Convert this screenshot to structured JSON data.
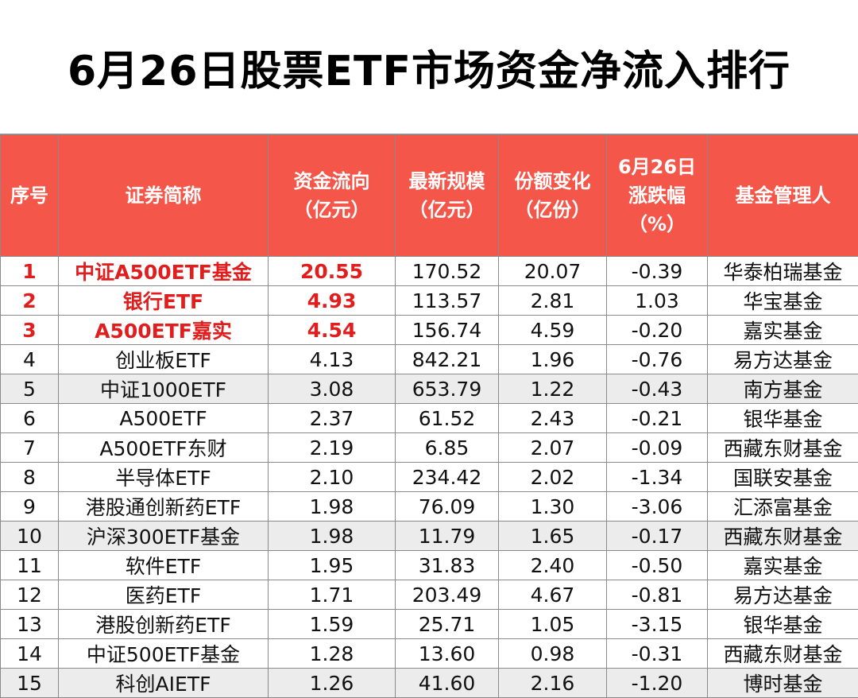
{
  "title": "6月26日股票ETF市场资金净流入排行",
  "colors": {
    "header_bg": "#f4574a",
    "highlight_text": "#e21d1d",
    "shaded_row": "#ececec"
  },
  "headers": {
    "rank": [
      "序号"
    ],
    "name": [
      "证券简称"
    ],
    "flow": [
      "资金流向",
      "（亿元）"
    ],
    "scale": [
      "最新规模",
      "（亿元）"
    ],
    "share": [
      "份额变化",
      "（亿份）"
    ],
    "change": [
      "6月26日",
      "涨跌幅",
      "（%）"
    ],
    "manager": [
      "基金管理人"
    ]
  },
  "rows": [
    {
      "rank": "1",
      "name": "中证A500ETF基金",
      "flow": "20.55",
      "scale": "170.52",
      "share": "20.07",
      "change": "-0.39",
      "manager": "华泰柏瑞基金"
    },
    {
      "rank": "2",
      "name": "银行ETF",
      "flow": "4.93",
      "scale": "113.57",
      "share": "2.81",
      "change": "1.03",
      "manager": "华宝基金"
    },
    {
      "rank": "3",
      "name": "A500ETF嘉实",
      "flow": "4.54",
      "scale": "156.74",
      "share": "4.59",
      "change": "-0.20",
      "manager": "嘉实基金"
    },
    {
      "rank": "4",
      "name": "创业板ETF",
      "flow": "4.13",
      "scale": "842.21",
      "share": "1.96",
      "change": "-0.76",
      "manager": "易方达基金"
    },
    {
      "rank": "5",
      "name": "中证1000ETF",
      "flow": "3.08",
      "scale": "653.79",
      "share": "1.22",
      "change": "-0.43",
      "manager": "南方基金"
    },
    {
      "rank": "6",
      "name": "A500ETF",
      "flow": "2.37",
      "scale": "61.52",
      "share": "2.43",
      "change": "-0.21",
      "manager": "银华基金"
    },
    {
      "rank": "7",
      "name": "A500ETF东财",
      "flow": "2.19",
      "scale": "6.85",
      "share": "2.07",
      "change": "-0.09",
      "manager": "西藏东财基金"
    },
    {
      "rank": "8",
      "name": "半导体ETF",
      "flow": "2.10",
      "scale": "234.42",
      "share": "2.02",
      "change": "-1.34",
      "manager": "国联安基金"
    },
    {
      "rank": "9",
      "name": "港股通创新药ETF",
      "flow": "1.98",
      "scale": "76.09",
      "share": "1.30",
      "change": "-3.06",
      "manager": "汇添富基金"
    },
    {
      "rank": "10",
      "name": "沪深300ETF基金",
      "flow": "1.98",
      "scale": "11.79",
      "share": "1.65",
      "change": "-0.17",
      "manager": "西藏东财基金"
    },
    {
      "rank": "11",
      "name": "软件ETF",
      "flow": "1.95",
      "scale": "31.83",
      "share": "2.40",
      "change": "-0.50",
      "manager": "嘉实基金"
    },
    {
      "rank": "12",
      "name": "医药ETF",
      "flow": "1.71",
      "scale": "203.49",
      "share": "4.67",
      "change": "-0.81",
      "manager": "易方达基金"
    },
    {
      "rank": "13",
      "name": "港股创新药ETF",
      "flow": "1.59",
      "scale": "25.71",
      "share": "1.05",
      "change": "-3.15",
      "manager": "银华基金"
    },
    {
      "rank": "14",
      "name": "中证500ETF基金",
      "flow": "1.28",
      "scale": "13.60",
      "share": "0.98",
      "change": "-0.31",
      "manager": "西藏东财基金"
    },
    {
      "rank": "15",
      "name": "科创AIETF",
      "flow": "1.26",
      "scale": "41.60",
      "share": "2.16",
      "change": "-1.20",
      "manager": "博时基金"
    }
  ]
}
